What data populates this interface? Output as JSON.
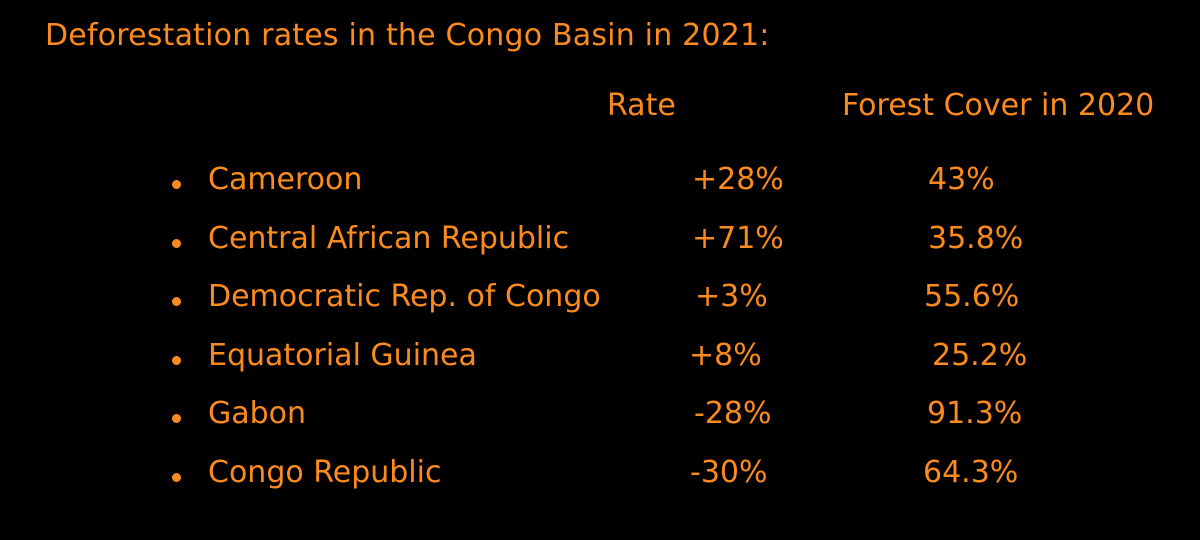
{
  "colors": {
    "background": "#000000",
    "text": "#fb8b1e"
  },
  "chart_data": {
    "type": "table",
    "title": "Deforestation rates in the Congo Basin in 2021:",
    "columns": [
      "Rate",
      "Forest Cover in 2020"
    ],
    "rows": [
      {
        "country": "Cameroon",
        "rate": "+28%",
        "forest_cover": "43%"
      },
      {
        "country": "Central African Republic",
        "rate": "+71%",
        "forest_cover": "35.8%"
      },
      {
        "country": "Democratic Rep. of Congo",
        "rate": "+3%",
        "forest_cover": "55.6%"
      },
      {
        "country": "Equatorial Guinea",
        "rate": "+8%",
        "forest_cover": "25.2%"
      },
      {
        "country": "Gabon",
        "rate": "-28%",
        "forest_cover": "91.3%"
      },
      {
        "country": "Congo Republic",
        "rate": "-30%",
        "forest_cover": "64.3%"
      }
    ]
  }
}
